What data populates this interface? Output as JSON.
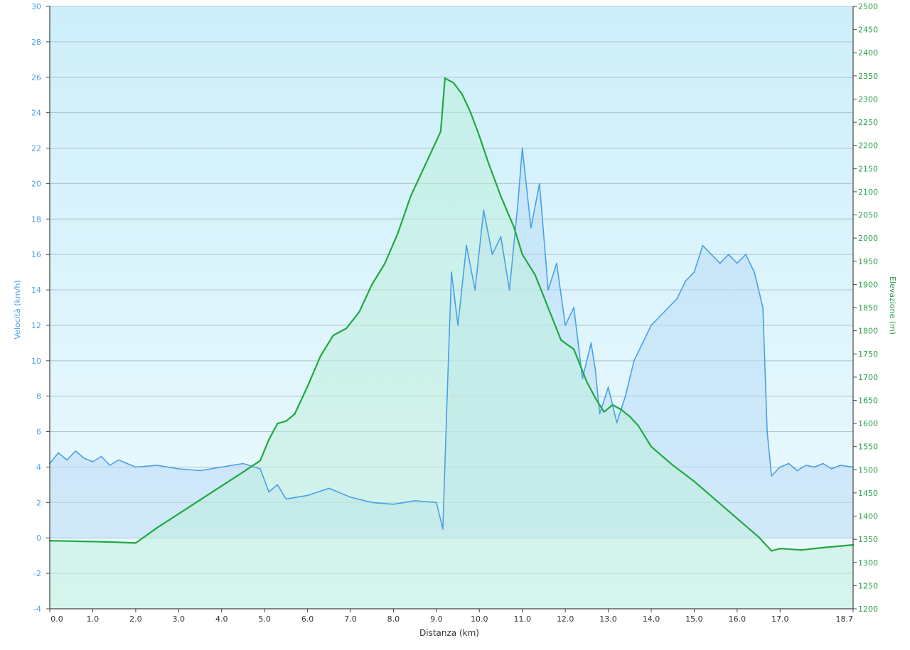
{
  "chart_data": {
    "type": "line",
    "xlabel": "Distanza  (km)",
    "y1label": "Velocità (km/h)",
    "y2label": "Elevazione (m)",
    "xlim": [
      0,
      18.7
    ],
    "xticks": [
      "0.0",
      "1.0",
      "2.0",
      "3.0",
      "4.0",
      "5.0",
      "6.0",
      "7.0",
      "8.0",
      "9.0",
      "10.0",
      "11.0",
      "12.0",
      "13.0",
      "14.0",
      "15.0",
      "16.0",
      "17.0",
      "18.7"
    ],
    "y1lim": [
      -4,
      30
    ],
    "y1ticks": [
      "30",
      "28",
      "26",
      "24",
      "22",
      "20",
      "18",
      "16",
      "14",
      "12",
      "10",
      "8",
      "6",
      "4",
      "2",
      "0",
      "-2",
      "-4"
    ],
    "y2lim": [
      1200,
      2500
    ],
    "y2ticks": [
      "2500",
      "2450",
      "2400",
      "2350",
      "2300",
      "2250",
      "2200",
      "2150",
      "2100",
      "2050",
      "2000",
      "1950",
      "1900",
      "1850",
      "1800",
      "1750",
      "1700",
      "1650",
      "1600",
      "1550",
      "1500",
      "1450",
      "1400",
      "1350",
      "1300",
      "1250",
      "1200"
    ],
    "grid": true,
    "colors": {
      "speed": "#4a9fe8",
      "elevation": "#1faa3e",
      "axis_left": "#4a9fe8",
      "axis_right": "#2aa04a"
    },
    "series": [
      {
        "name": "Velocità",
        "axis": "left",
        "x": [
          0,
          0.2,
          0.4,
          0.6,
          0.8,
          1.0,
          1.2,
          1.4,
          1.6,
          1.8,
          2.0,
          2.5,
          3.0,
          3.5,
          4.0,
          4.5,
          4.9,
          5.1,
          5.3,
          5.5,
          6.0,
          6.5,
          7.0,
          7.5,
          8.0,
          8.5,
          9.0,
          9.15,
          9.25,
          9.35,
          9.5,
          9.7,
          9.9,
          10.1,
          10.3,
          10.5,
          10.7,
          10.9,
          11.0,
          11.2,
          11.4,
          11.6,
          11.8,
          12.0,
          12.2,
          12.4,
          12.6,
          12.7,
          12.8,
          13.0,
          13.2,
          13.4,
          13.6,
          13.8,
          14.0,
          14.2,
          14.4,
          14.6,
          14.8,
          15.0,
          15.2,
          15.4,
          15.6,
          15.8,
          16.0,
          16.2,
          16.4,
          16.6,
          16.7,
          16.8,
          17.0,
          17.2,
          17.4,
          17.6,
          17.8,
          18.0,
          18.2,
          18.4,
          18.7
        ],
        "y": [
          4.2,
          4.8,
          4.4,
          4.9,
          4.5,
          4.3,
          4.6,
          4.1,
          4.4,
          4.2,
          4.0,
          4.1,
          3.9,
          3.8,
          4.0,
          4.2,
          3.9,
          2.6,
          3.0,
          2.2,
          2.4,
          2.8,
          2.3,
          2.0,
          1.9,
          2.1,
          2.0,
          0.5,
          8.0,
          15.0,
          12.0,
          16.5,
          14.0,
          18.5,
          16.0,
          17.0,
          14.0,
          19.0,
          22.0,
          17.5,
          20.0,
          14.0,
          15.5,
          12.0,
          13.0,
          9.0,
          11.0,
          9.5,
          7.0,
          8.5,
          6.5,
          8.0,
          10.0,
          11.0,
          12.0,
          12.5,
          13.0,
          13.5,
          14.5,
          15.0,
          16.5,
          16.0,
          15.5,
          16.0,
          15.5,
          16.0,
          15.0,
          13.0,
          6.0,
          3.5,
          4.0,
          4.2,
          3.8,
          4.1,
          4.0,
          4.2,
          3.9,
          4.1,
          4.0
        ]
      },
      {
        "name": "Elevazione",
        "axis": "right",
        "x": [
          0,
          0.5,
          1.0,
          1.5,
          2.0,
          2.5,
          3.0,
          3.5,
          4.0,
          4.5,
          4.9,
          5.1,
          5.3,
          5.5,
          5.7,
          6.0,
          6.3,
          6.6,
          6.9,
          7.2,
          7.5,
          7.8,
          8.1,
          8.4,
          8.7,
          9.0,
          9.1,
          9.2,
          9.4,
          9.6,
          9.8,
          10.0,
          10.2,
          10.5,
          10.8,
          11.0,
          11.3,
          11.6,
          11.9,
          12.2,
          12.5,
          12.7,
          12.9,
          13.1,
          13.3,
          13.5,
          13.7,
          14.0,
          14.5,
          15.0,
          15.5,
          16.0,
          16.5,
          16.8,
          17.0,
          17.5,
          18.0,
          18.7
        ],
        "y": [
          1347,
          1346,
          1345,
          1344,
          1342,
          1375,
          1405,
          1435,
          1465,
          1495,
          1520,
          1565,
          1600,
          1605,
          1620,
          1680,
          1745,
          1790,
          1805,
          1840,
          1900,
          1945,
          2010,
          2090,
          2150,
          2210,
          2230,
          2345,
          2335,
          2310,
          2270,
          2220,
          2165,
          2090,
          2025,
          1965,
          1920,
          1850,
          1780,
          1760,
          1690,
          1655,
          1625,
          1640,
          1630,
          1615,
          1595,
          1550,
          1510,
          1475,
          1435,
          1395,
          1355,
          1325,
          1330,
          1327,
          1332,
          1338
        ]
      }
    ]
  }
}
